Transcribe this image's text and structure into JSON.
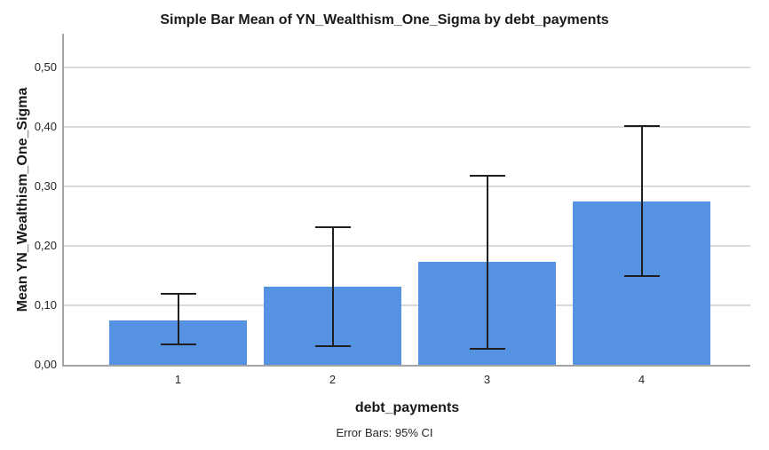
{
  "chart_data": {
    "type": "bar",
    "title": "Simple Bar Mean of YN_Wealthism_One_Sigma by debt_payments",
    "ylabel": "Mean YN_Wealthism_One_Sigma",
    "xlabel": "debt_payments",
    "footnote": "Error Bars: 95% CI",
    "categories": [
      "1",
      "2",
      "3",
      "4"
    ],
    "values": [
      0.075,
      0.131,
      0.173,
      0.275
    ],
    "error_low": [
      0.033,
      0.03,
      0.026,
      0.148
    ],
    "error_high": [
      0.12,
      0.233,
      0.319,
      0.403
    ],
    "ylim": [
      0,
      0.556
    ],
    "yticks": [
      0,
      0.1,
      0.2,
      0.3,
      0.4,
      0.5
    ],
    "ytick_labels": [
      "0,00",
      "0,10",
      "0,20",
      "0,30",
      "0,40",
      "0,50"
    ],
    "decimal_separator": ",",
    "grid": true,
    "legend": "none",
    "colors": {
      "bar": "#5593E2",
      "grid": "#d9d9d9",
      "axis": "#a3a3a3",
      "error_bar": "#1f1f1f",
      "background": "#ffffff"
    }
  }
}
